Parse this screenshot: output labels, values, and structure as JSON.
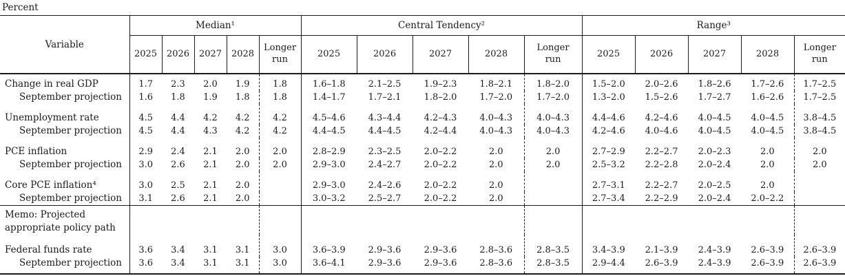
{
  "unit_label": "Percent",
  "table": {
    "variable_header": "Variable",
    "col_groups": [
      {
        "label": "Median¹"
      },
      {
        "label": "Central Tendency²"
      },
      {
        "label": "Range³"
      }
    ],
    "year_headers": [
      "2025",
      "2026",
      "2027",
      "2028",
      "Longer\nrun"
    ],
    "rows": [
      {
        "label": "Change in real GDP",
        "indent": false,
        "group_start": false,
        "median": [
          "1.7",
          "2.3",
          "2.0",
          "1.9",
          "1.8"
        ],
        "central_tendency": [
          "1.6–1.8",
          "2.1–2.5",
          "1.9–2.3",
          "1.8–2.1",
          "1.8–2.0"
        ],
        "range": [
          "1.5–2.0",
          "2.0–2.6",
          "1.8–2.6",
          "1.7–2.6",
          "1.7–2.5"
        ]
      },
      {
        "label": "September projection",
        "indent": true,
        "group_start": false,
        "median": [
          "1.6",
          "1.8",
          "1.9",
          "1.8",
          "1.8"
        ],
        "central_tendency": [
          "1.4–1.7",
          "1.7–2.1",
          "1.8–2.0",
          "1.7–2.0",
          "1.7–2.0"
        ],
        "range": [
          "1.3–2.0",
          "1.5–2.6",
          "1.7–2.7",
          "1.6–2.6",
          "1.7–2.5"
        ]
      },
      {
        "label": "Unemployment rate",
        "indent": false,
        "group_start": true,
        "median": [
          "4.5",
          "4.4",
          "4.2",
          "4.2",
          "4.2"
        ],
        "central_tendency": [
          "4.5–4.6",
          "4.3–4.4",
          "4.2–4.3",
          "4.0–4.3",
          "4.0–4.3"
        ],
        "range": [
          "4.4–4.6",
          "4.2–4.6",
          "4.0–4.5",
          "4.0–4.5",
          "3.8–4.5"
        ]
      },
      {
        "label": "September projection",
        "indent": true,
        "group_start": false,
        "median": [
          "4.5",
          "4.4",
          "4.3",
          "4.2",
          "4.2"
        ],
        "central_tendency": [
          "4.4–4.5",
          "4.4–4.5",
          "4.2–4.4",
          "4.0–4.3",
          "4.0–4.3"
        ],
        "range": [
          "4.2–4.6",
          "4.0–4.6",
          "4.0–4.5",
          "4.0–4.5",
          "3.8–4.5"
        ]
      },
      {
        "label": "PCE inflation",
        "indent": false,
        "group_start": true,
        "median": [
          "2.9",
          "2.4",
          "2.1",
          "2.0",
          "2.0"
        ],
        "central_tendency": [
          "2.8–2.9",
          "2.3–2.5",
          "2.0–2.2",
          "2.0",
          "2.0"
        ],
        "range": [
          "2.7–2.9",
          "2.2–2.7",
          "2.0–2.3",
          "2.0",
          "2.0"
        ]
      },
      {
        "label": "September projection",
        "indent": true,
        "group_start": false,
        "median": [
          "3.0",
          "2.6",
          "2.1",
          "2.0",
          "2.0"
        ],
        "central_tendency": [
          "2.9–3.0",
          "2.4–2.7",
          "2.0–2.2",
          "2.0",
          "2.0"
        ],
        "range": [
          "2.5–3.2",
          "2.2–2.8",
          "2.0–2.4",
          "2.0",
          "2.0"
        ]
      },
      {
        "label": "Core PCE inflation⁴",
        "indent": false,
        "group_start": true,
        "median": [
          "3.0",
          "2.5",
          "2.1",
          "2.0",
          ""
        ],
        "central_tendency": [
          "2.9–3.0",
          "2.4–2.6",
          "2.0–2.2",
          "2.0",
          ""
        ],
        "range": [
          "2.7–3.1",
          "2.2–2.7",
          "2.0–2.5",
          "2.0",
          ""
        ]
      },
      {
        "label": "September projection",
        "indent": true,
        "group_start": false,
        "median": [
          "3.1",
          "2.6",
          "2.1",
          "2.0",
          ""
        ],
        "central_tendency": [
          "3.0–3.2",
          "2.5–2.7",
          "2.0–2.2",
          "2.0",
          ""
        ],
        "range": [
          "2.7–3.4",
          "2.2–2.9",
          "2.0–2.4",
          "2.0–2.2",
          ""
        ]
      },
      {
        "label": "Memo: Projected\nappropriate policy path",
        "indent": false,
        "group_start": false,
        "memo_sep": true,
        "median": [
          "",
          "",
          "",
          "",
          ""
        ],
        "central_tendency": [
          "",
          "",
          "",
          "",
          ""
        ],
        "range": [
          "",
          "",
          "",
          "",
          ""
        ]
      },
      {
        "label": "Federal funds rate",
        "indent": false,
        "group_start": false,
        "ff_start": true,
        "median": [
          "3.6",
          "3.4",
          "3.1",
          "3.1",
          "3.0"
        ],
        "central_tendency": [
          "3.6–3.9",
          "2.9–3.6",
          "2.9–3.6",
          "2.8–3.6",
          "2.8–3.5"
        ],
        "range": [
          "3.4–3.9",
          "2.1–3.9",
          "2.4–3.9",
          "2.6–3.9",
          "2.6–3.9"
        ]
      },
      {
        "label": "September projection",
        "indent": true,
        "group_start": false,
        "median": [
          "3.6",
          "3.4",
          "3.1",
          "3.1",
          "3.0"
        ],
        "central_tendency": [
          "3.6–4.1",
          "2.9–3.6",
          "2.9–3.6",
          "2.8–3.6",
          "2.8–3.5"
        ],
        "range": [
          "2.9–4.4",
          "2.6–3.9",
          "2.4–3.9",
          "2.6–3.9",
          "2.6–3.9"
        ]
      }
    ]
  }
}
